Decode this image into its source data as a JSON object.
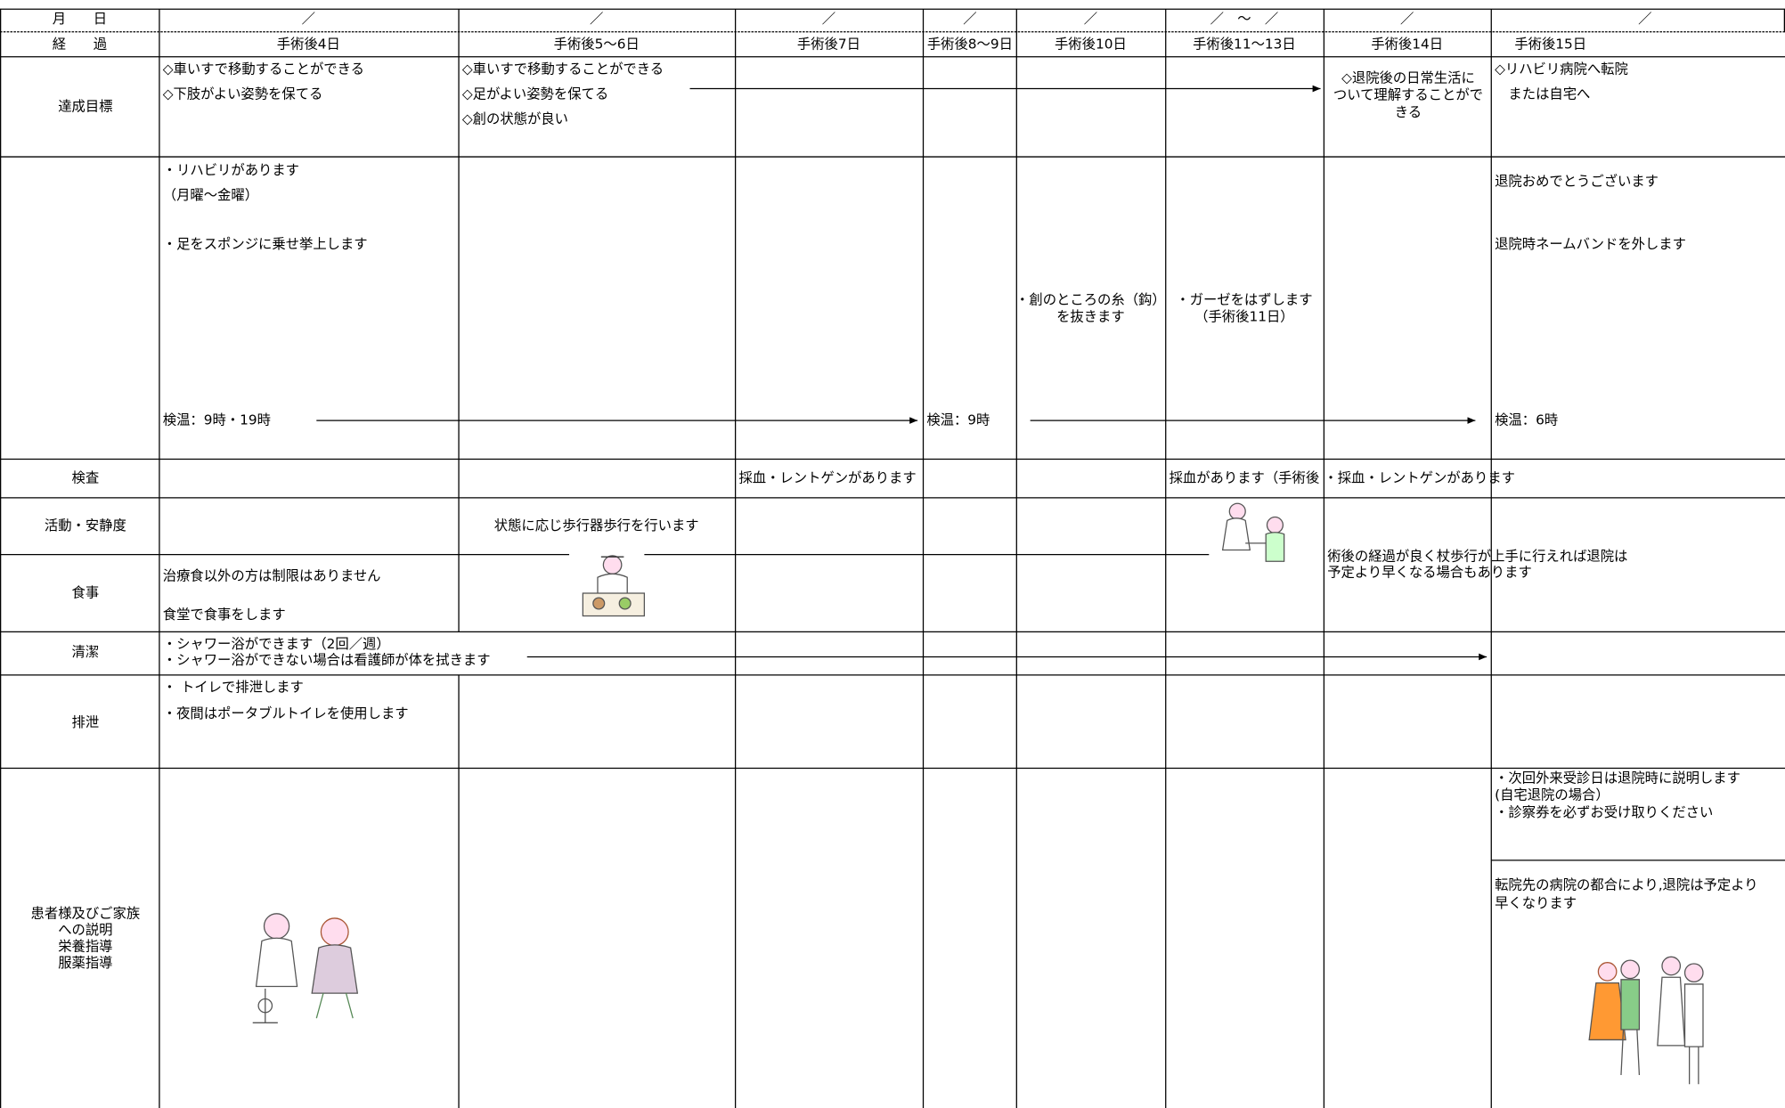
{
  "header": {
    "date_label": "月　　日",
    "course_label": "経　　過",
    "dates": [
      "／",
      "／",
      "／",
      "／",
      "／",
      "／　～　／",
      "／",
      "／"
    ],
    "days": [
      "手術後4日",
      "手術後5～6日",
      "手術後7日",
      "手術後8～9日",
      "手術後10日",
      "手術後11～13日",
      "手術後14日",
      "手術後15日"
    ]
  },
  "goals": {
    "label": "達成目標",
    "day4": [
      "◇車いすで移動することができる",
      "◇下肢がよい姿勢を保てる"
    ],
    "day5": [
      "◇車いすで移動することができる",
      "◇足がよい姿勢を保てる",
      "◇創の状態が良い"
    ],
    "day14": [
      "◇退院後の日常生活に",
      "ついて理解することがで",
      "きる"
    ],
    "day15": [
      "◇リハビリ病院へ転院",
      "　または自宅へ"
    ]
  },
  "care": {
    "day4": [
      "・リハビリがあります",
      "（月曜～金曜）",
      "・足をスポンジに乗せ挙上します"
    ],
    "vitals": [
      "検温：9時・19時",
      "検温：9時",
      "検温：6時"
    ],
    "day10": [
      "・創のところの糸（鈎）",
      "を抜きます"
    ],
    "day11": [
      "・ガーゼをはずします",
      "（手術後11日）"
    ],
    "day15": [
      "退院おめでとうございます",
      "退院時ネームバンドを外します"
    ]
  },
  "exam": {
    "label": "検査",
    "day7": "採血・レントゲンがあります",
    "day11": "採血があります（手術後",
    "day14": "・採血・レントゲンがあります"
  },
  "activity": {
    "label": "活動・安静度",
    "day5": "状態に応じ歩行器歩行を行います",
    "note": [
      "術後の経過が良く杖歩行が上手に行えれば退院は",
      "予定より早くなる場合もあります"
    ]
  },
  "meal": {
    "label": "食事",
    "day4": [
      "治療食以外の方は制限はありません",
      "食堂で食事をします"
    ]
  },
  "hygiene": {
    "label": "清潔",
    "day4": [
      "・シャワー浴ができます（2回／週）",
      "・シャワー浴ができない場合は看護師が体を拭きます"
    ]
  },
  "excretion": {
    "label": "排泄",
    "day4": [
      "・ トイレで排泄します",
      "・夜間はポータブルトイレを使用します"
    ]
  },
  "explanation": {
    "label": [
      "患者様及びご家族",
      "への説明",
      "栄養指導",
      "服薬指導"
    ],
    "day15": [
      "・次回外来受診日は退院時に説明します",
      "(自宅退院の場合）",
      "・診察券を必ずお受け取りください"
    ],
    "day15_transfer": [
      "転院先の病院の都合により,退院は予定より",
      "早くなります"
    ]
  }
}
